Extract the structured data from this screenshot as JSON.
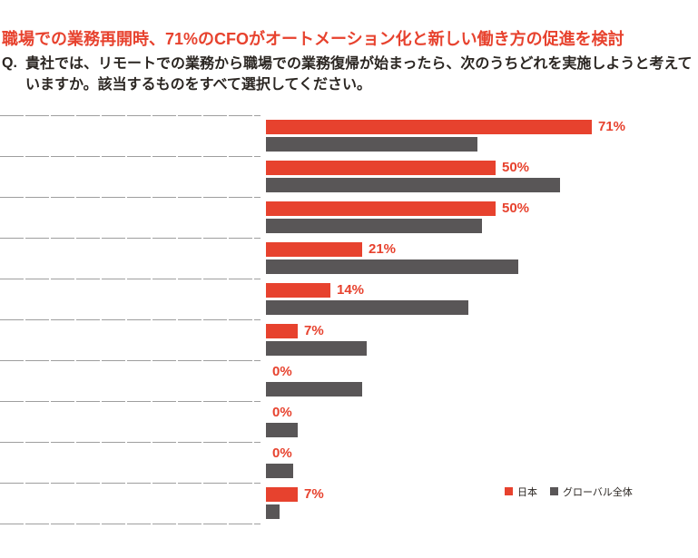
{
  "header": {
    "title": "職場での業務再開時、71%のCFOがオートメーション化と新しい働き方の促進を検討",
    "question_prefix": "Q.",
    "question": "貴社では、リモートでの業務から職場での業務復帰が始まったら、次のうちどれを実施しようと考えていますか。該当するものをすべて選択してください。"
  },
  "legend": {
    "japan": "日本",
    "global": "グローバル全体"
  },
  "colors": {
    "japan_red": "#E7422E",
    "global_gray": "#595657",
    "text_dark": "#2B2622",
    "separator_gray": "#9E9E9E"
  },
  "chart_data": {
    "type": "bar",
    "orientation": "horizontal",
    "unit": "%",
    "xlim": [
      0,
      94
    ],
    "grid": "row separator lines only, no axis",
    "legend_position": "bottom-right",
    "categories": [
      "",
      "",
      "",
      "",
      "",
      "",
      "",
      "",
      "",
      ""
    ],
    "series": [
      {
        "name": "日本",
        "values": [
          71,
          50,
          50,
          21,
          14,
          7,
          0,
          0,
          0,
          7
        ]
      },
      {
        "name": "グローバル全体",
        "values": [
          46,
          64,
          47,
          55,
          44,
          22,
          21,
          7,
          6,
          3
        ]
      }
    ],
    "value_labels": [
      "71%",
      "50%",
      "50%",
      "21%",
      "14%",
      "7%",
      "0%",
      "0%",
      "0%",
      "7%"
    ]
  }
}
